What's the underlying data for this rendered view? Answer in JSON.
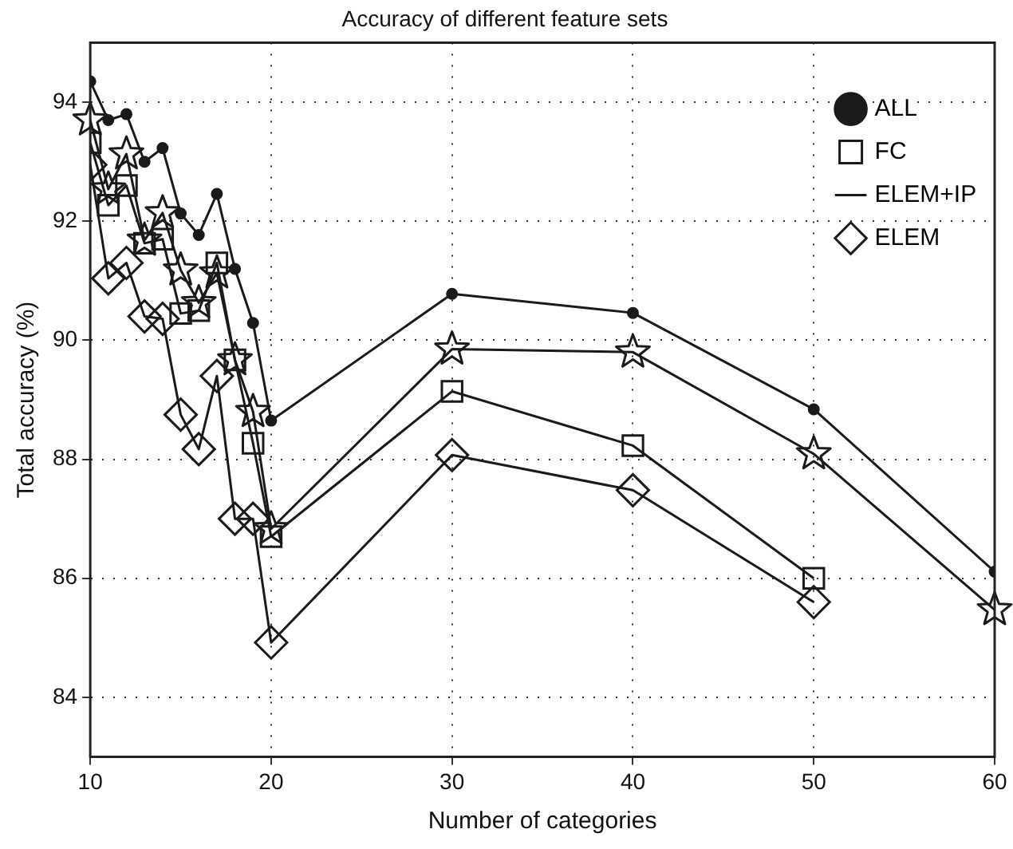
{
  "chart_data": {
    "type": "line",
    "title": "Accuracy of different feature sets",
    "xlabel": "Number of categories",
    "ylabel": "Total accuracy (%)",
    "x": [
      10,
      11,
      12,
      13,
      14,
      15,
      16,
      17,
      18,
      19,
      20,
      30,
      40,
      50,
      60
    ],
    "series": [
      {
        "name": "ALL",
        "color": "#1a1a1a",
        "marker": "circle",
        "values": [
          94.35,
          93.7,
          93.8,
          93.0,
          93.23,
          92.13,
          91.77,
          92.46,
          91.2,
          90.29,
          88.65,
          90.78,
          90.46,
          88.84,
          86.11
        ]
      },
      {
        "name": "FC",
        "color": "#1a1a1a",
        "marker": "square",
        "values": [
          93.32,
          92.27,
          92.6,
          91.63,
          91.7,
          90.45,
          90.5,
          91.3,
          89.67,
          88.27,
          86.7,
          89.14,
          88.23,
          86.0,
          null
        ]
      },
      {
        "name": "ELEM+IP",
        "color": "#1a1a1a",
        "marker": "star",
        "values": [
          93.7,
          92.54,
          93.13,
          91.68,
          92.14,
          91.18,
          90.63,
          91.13,
          89.67,
          88.8,
          86.83,
          89.85,
          89.8,
          88.09,
          85.47
        ]
      },
      {
        "name": "ELEM",
        "color": "#1a1a1a",
        "marker": "diamond",
        "values": [
          92.95,
          91.04,
          91.3,
          90.4,
          90.36,
          88.75,
          88.17,
          89.4,
          87.0,
          87.0,
          84.92,
          88.07,
          87.48,
          85.6,
          null
        ]
      }
    ],
    "xlim": [
      10,
      60
    ],
    "xticks": [
      10,
      20,
      30,
      40,
      50,
      60
    ],
    "ylim": [
      83,
      95
    ],
    "yticks": [
      84,
      86,
      88,
      90,
      92,
      94
    ],
    "grid": true,
    "legend": "top right",
    "line_style": "solid"
  }
}
